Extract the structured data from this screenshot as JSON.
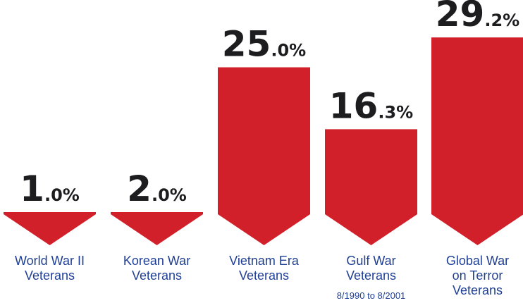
{
  "header": {
    "text": ""
  },
  "colors": {
    "bar": "#d1202a",
    "value_text": "#1d1d1f",
    "category_text": "#1f3f95"
  },
  "chart_data": {
    "type": "bar",
    "categories": [
      [
        "World War II",
        "Veterans"
      ],
      [
        "Korean War",
        "Veterans"
      ],
      [
        "Vietnam Era",
        "Veterans"
      ],
      [
        "Gulf War",
        "Veterans"
      ],
      [
        "Global War",
        "on Terror",
        "Veterans"
      ]
    ],
    "subtitles": [
      "",
      "",
      "",
      "8/1990 to 8/2001",
      ""
    ],
    "values": [
      1.0,
      2.0,
      25.0,
      16.3,
      29.2
    ],
    "value_labels": [
      {
        "int": "1",
        "dec": ".0%"
      },
      {
        "int": "2",
        "dec": ".0%"
      },
      {
        "int": "25",
        "dec": ".0%"
      },
      {
        "int": "16",
        "dec": ".3%"
      },
      {
        "int": "29",
        "dec": ".2%"
      }
    ],
    "ylim": [
      0,
      30
    ],
    "grid": false,
    "legend": "none"
  }
}
